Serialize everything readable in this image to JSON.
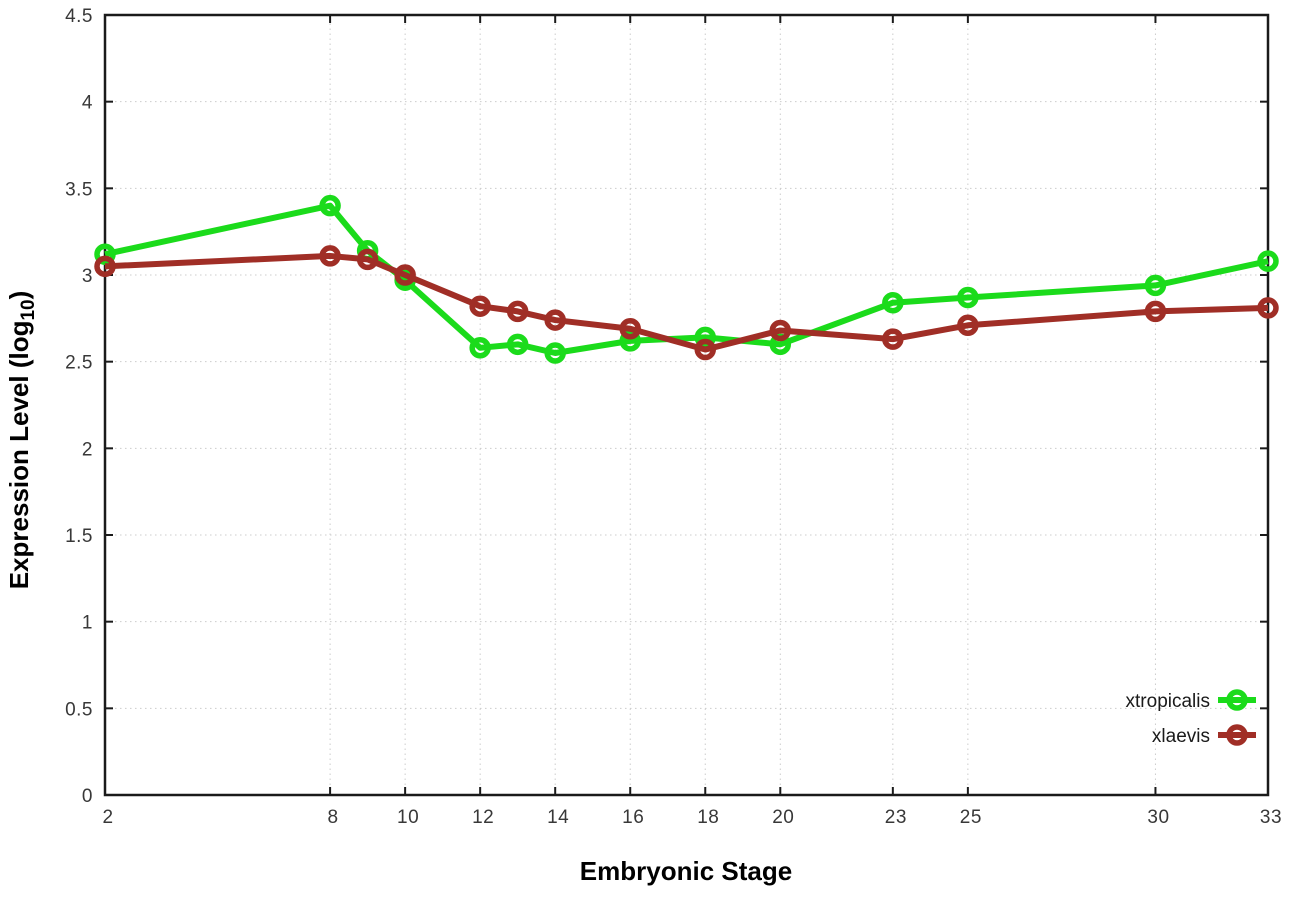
{
  "chart_data": {
    "type": "line",
    "title": "",
    "xlabel": "Embryonic Stage",
    "ylabel": {
      "prefix": "Expression Level (log",
      "sub": "10",
      "suffix": ")"
    },
    "x": [
      2,
      8,
      9,
      10,
      12,
      13,
      14,
      16,
      18,
      20,
      23,
      25,
      30,
      33
    ],
    "x_ticks": [
      "2",
      "8",
      "10",
      "12",
      "14",
      "16",
      "18",
      "20",
      "23",
      "25",
      "30",
      "33"
    ],
    "y_ticks": [
      "0",
      "0.5",
      "1",
      "1.5",
      "2",
      "2.5",
      "3",
      "3.5",
      "4",
      "4.5"
    ],
    "xlim": [
      2,
      33
    ],
    "ylim": [
      0,
      4.5
    ],
    "grid": true,
    "legend_position": "bottom-right",
    "series": [
      {
        "name": "xtropicalis",
        "color": "#1bdb1b",
        "values": [
          3.12,
          3.4,
          3.14,
          2.97,
          2.58,
          2.6,
          2.55,
          2.62,
          2.64,
          2.6,
          2.84,
          2.87,
          2.94,
          3.08
        ]
      },
      {
        "name": "xlaevis",
        "color": "#a02e26",
        "values": [
          3.05,
          3.11,
          3.09,
          3.0,
          2.82,
          2.79,
          2.74,
          2.69,
          2.57,
          2.68,
          2.63,
          2.71,
          2.79,
          2.81
        ]
      }
    ],
    "colors": {
      "grid": "#cccccc",
      "border": "#1a1a1a",
      "tick_text": "#383838"
    }
  }
}
